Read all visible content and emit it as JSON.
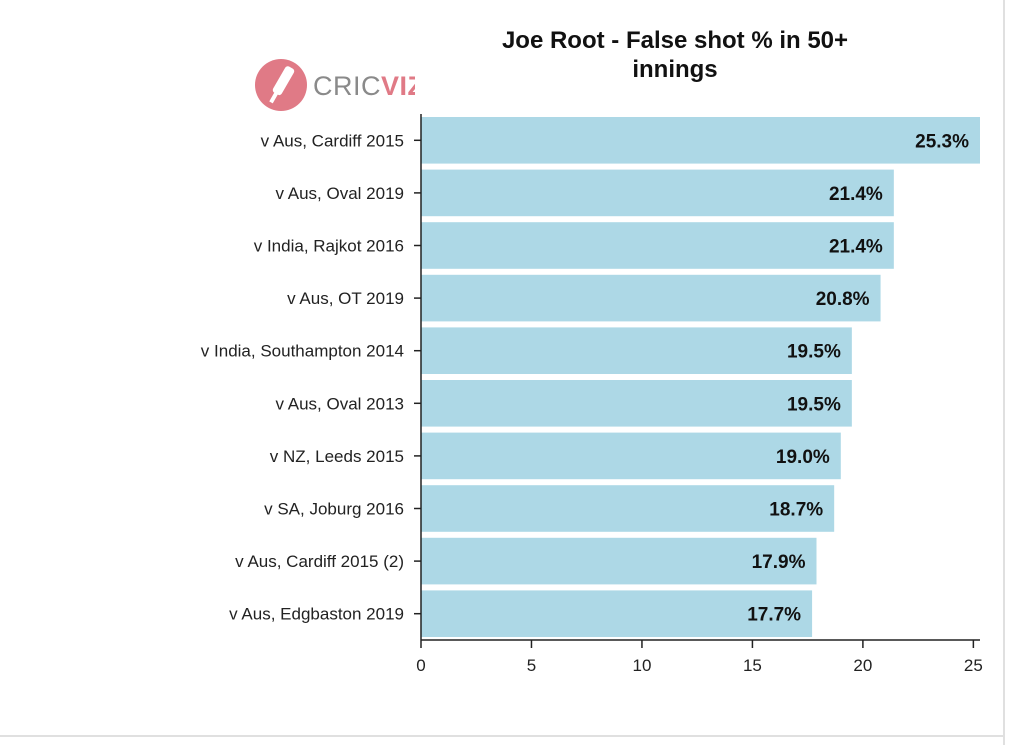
{
  "chart_data": {
    "type": "bar",
    "orientation": "horizontal",
    "title": "Joe Root - False shot % in 50+ innings",
    "xlabel": "",
    "ylabel": "",
    "xlim": [
      0,
      25.3
    ],
    "x_ticks": [
      0,
      5,
      10,
      15,
      20,
      25
    ],
    "grid": false,
    "bar_color": "#add8e6",
    "categories": [
      "v Aus, Cardiff 2015",
      "v Aus, Oval 2019",
      "v India, Rajkot 2016",
      "v Aus, OT 2019",
      "v India, Southampton 2014",
      "v Aus, Oval 2013",
      "v NZ, Leeds 2015",
      "v SA, Joburg 2016",
      "v Aus, Cardiff 2015 (2)",
      "v Aus, Edgbaston 2019"
    ],
    "values": [
      25.3,
      21.4,
      21.4,
      20.8,
      19.5,
      19.5,
      19.0,
      18.7,
      17.9,
      17.7
    ],
    "data_labels": [
      "25.3%",
      "21.4%",
      "21.4%",
      "20.8%",
      "19.5%",
      "19.5%",
      "19.0%",
      "18.7%",
      "17.9%",
      "17.7%"
    ]
  },
  "logo": {
    "text_part1": "CRIC",
    "text_part2": "VIZ",
    "color_primary": "#e07a86",
    "color_text": "#8a8a8a"
  }
}
